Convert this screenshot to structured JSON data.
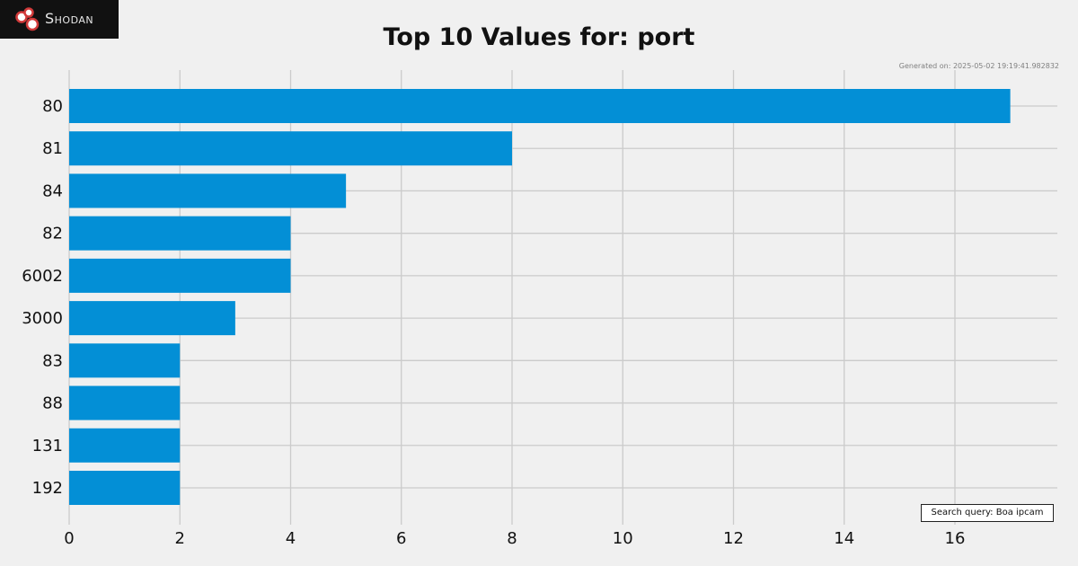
{
  "logo": {
    "text": "Shodan"
  },
  "generated_text": "Generated on: 2025-05-02 19:19:41.982832",
  "query_text": "Search query: Boa ipcam",
  "colors": {
    "bar": "#038fd6",
    "grid": "#cbcbcb",
    "background": "#f0f0f0"
  },
  "chart_data": {
    "type": "bar",
    "orientation": "horizontal",
    "title": "Top 10 Values for: port",
    "xlabel": "",
    "ylabel": "",
    "categories": [
      "80",
      "81",
      "84",
      "82",
      "6002",
      "3000",
      "83",
      "88",
      "131",
      "192"
    ],
    "values": [
      17,
      8,
      5,
      4,
      4,
      3,
      2,
      2,
      2,
      2
    ],
    "xlim": [
      0,
      17.85
    ],
    "xticks": [
      0,
      2,
      4,
      6,
      8,
      10,
      12,
      14,
      16
    ],
    "grid": true
  }
}
